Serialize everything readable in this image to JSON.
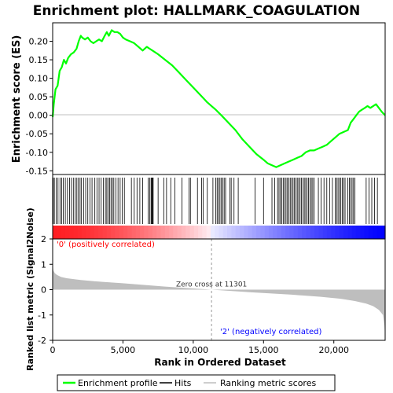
{
  "chart_data": {
    "type": "line",
    "title": "Enrichment plot: HALLMARK_COAGULATION",
    "top_panel": {
      "ylabel": "Enrichment score (ES)",
      "ylim": [
        -0.16,
        0.25
      ],
      "yticks": [
        -0.15,
        -0.1,
        -0.05,
        0.0,
        0.05,
        0.1,
        0.15,
        0.2
      ],
      "ytick_labels": [
        "-0.15",
        "-0.10",
        "-0.05",
        "0.00",
        "0.05",
        "0.10",
        "0.15",
        "0.20"
      ],
      "series": [
        {
          "name": "Enrichment profile",
          "color": "#00ff00",
          "x": [
            0,
            80,
            200,
            350,
            500,
            650,
            800,
            950,
            1100,
            1300,
            1500,
            1700,
            1850,
            2000,
            2100,
            2300,
            2500,
            2700,
            2900,
            3100,
            3300,
            3500,
            3700,
            3850,
            4000,
            4200,
            4400,
            4600,
            4800,
            5000,
            5200,
            5500,
            5800,
            6100,
            6400,
            6700,
            6900,
            7100,
            7500,
            8000,
            8500,
            9000,
            9500,
            10000,
            10500,
            11000,
            11300,
            11600,
            12000,
            12500,
            13000,
            13500,
            14000,
            14500,
            15000,
            15300,
            15600,
            15900,
            16200,
            16500,
            16800,
            17100,
            17400,
            17700,
            18000,
            18300,
            18600,
            18900,
            19200,
            19500,
            19800,
            20100,
            20400,
            20700,
            21000,
            21200,
            21400,
            21600,
            21800,
            22000,
            22200,
            22400,
            22600,
            22800,
            23000,
            23200,
            23400,
            23650
          ],
          "y": [
            -0.005,
            0.03,
            0.07,
            0.08,
            0.12,
            0.13,
            0.15,
            0.14,
            0.155,
            0.165,
            0.17,
            0.18,
            0.2,
            0.215,
            0.21,
            0.205,
            0.21,
            0.2,
            0.195,
            0.2,
            0.205,
            0.2,
            0.215,
            0.225,
            0.215,
            0.23,
            0.225,
            0.225,
            0.22,
            0.21,
            0.205,
            0.2,
            0.195,
            0.185,
            0.175,
            0.185,
            0.18,
            0.175,
            0.165,
            0.15,
            0.135,
            0.115,
            0.095,
            0.075,
            0.055,
            0.035,
            0.025,
            0.015,
            0.0,
            -0.02,
            -0.04,
            -0.065,
            -0.085,
            -0.105,
            -0.12,
            -0.13,
            -0.135,
            -0.14,
            -0.135,
            -0.13,
            -0.125,
            -0.12,
            -0.115,
            -0.11,
            -0.1,
            -0.095,
            -0.095,
            -0.09,
            -0.085,
            -0.08,
            -0.07,
            -0.06,
            -0.05,
            -0.045,
            -0.04,
            -0.02,
            -0.01,
            0.0,
            0.01,
            0.015,
            0.02,
            0.025,
            0.02,
            0.025,
            0.03,
            0.02,
            0.01,
            0.0
          ]
        }
      ]
    },
    "hits_panel": {
      "name": "Hits",
      "hit_positions": [
        40,
        120,
        250,
        380,
        520,
        640,
        760,
        900,
        1050,
        1200,
        1330,
        1470,
        1600,
        1720,
        1830,
        1950,
        2050,
        2200,
        2350,
        2500,
        2650,
        2800,
        3000,
        3150,
        3300,
        3450,
        3600,
        3750,
        3850,
        3950,
        4050,
        4150,
        4250,
        4350,
        4500,
        4650,
        4800,
        4950,
        5100,
        5600,
        5800,
        6000,
        6200,
        6400,
        6800,
        6900,
        7000,
        7050,
        7100,
        7150,
        7500,
        7900,
        8100,
        8400,
        8700,
        9200,
        9700,
        9800,
        10300,
        10600,
        10700,
        11000,
        11400,
        11600,
        11700,
        11800,
        11900,
        12000,
        12100,
        12200,
        12300,
        12600,
        12700,
        12900,
        13200,
        14400,
        15000,
        15600,
        15800,
        16000,
        16100,
        16200,
        16300,
        16400,
        16500,
        16600,
        16700,
        16800,
        16900,
        17000,
        17100,
        17200,
        17300,
        17400,
        17500,
        17600,
        17700,
        17800,
        17900,
        18000,
        18100,
        18200,
        18300,
        18400,
        18500,
        18600,
        18900,
        19100,
        19300,
        19500,
        19700,
        19900,
        20100,
        20200,
        20300,
        20400,
        20500,
        20600,
        20700,
        20800,
        21000,
        21100,
        21200,
        21300,
        21400,
        21500,
        22300,
        22500,
        22700,
        22900,
        23100
      ]
    },
    "metric_panel": {
      "name": "Ranking metric scores",
      "ylabel": "Ranked list metric (Signal2Noise)",
      "ylim": [
        -2,
        2
      ],
      "yticks": [
        -2,
        -1,
        0,
        1,
        2
      ],
      "ytick_labels": [
        "-2",
        "-1",
        "0",
        "1",
        "2"
      ],
      "x": [
        0,
        50,
        150,
        300,
        600,
        1000,
        2000,
        3000,
        5000,
        8000,
        11301,
        14000,
        17000,
        19000,
        20500,
        21500,
        22300,
        22800,
        23200,
        23500,
        23600,
        23650
      ],
      "y": [
        1.0,
        0.75,
        0.65,
        0.58,
        0.5,
        0.45,
        0.38,
        0.33,
        0.25,
        0.12,
        0.0,
        -0.1,
        -0.2,
        -0.28,
        -0.36,
        -0.45,
        -0.55,
        -0.65,
        -0.8,
        -1.0,
        -1.4,
        -1.9
      ]
    },
    "xlabel": "Rank in Ordered Dataset",
    "xlim": [
      0,
      23650
    ],
    "xticks": [
      0,
      5000,
      10000,
      15000,
      20000
    ],
    "xtick_labels": [
      "0",
      "5,000",
      "10,000",
      "15,000",
      "20,000"
    ],
    "zero_cross_label": "Zero cross at 11301",
    "zero_cross": 11301,
    "pos_label": "'0' (positively correlated)",
    "neg_label": "'2' (negatively correlated)",
    "pos_color": "#ff0000",
    "neg_color": "#0000ff",
    "legend_position": "bottom",
    "legend": [
      {
        "label": "Enrichment profile",
        "color": "#00ff00"
      },
      {
        "label": "Hits",
        "color": "#000000"
      },
      {
        "label": "Ranking metric scores",
        "color": "#bebebe"
      }
    ]
  }
}
